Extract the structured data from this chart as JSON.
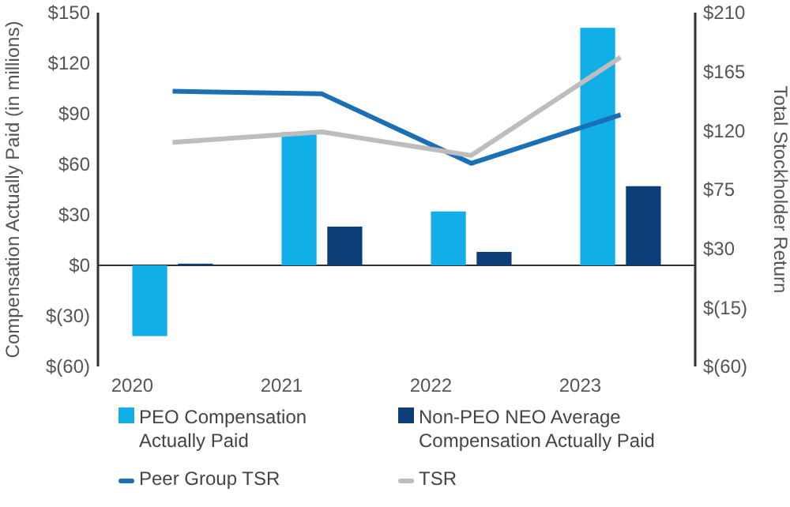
{
  "chart_data": {
    "type": "bar",
    "categories": [
      "2020",
      "2021",
      "2022",
      "2023"
    ],
    "ylabel": "Compensation Actually Paid (in millions)",
    "y2label": "Total Stockholder Return",
    "series": [
      {
        "name": "PEO Compensation Actually Paid",
        "color": "#12aee8",
        "values": [
          -42,
          79,
          32,
          141
        ]
      },
      {
        "name": "Non-PEO NEO Average Compensation Actually Paid",
        "color": "#0c3f78",
        "values": [
          1,
          23,
          8,
          47
        ]
      },
      {
        "name": "Peer Group TSR",
        "type": "line",
        "axis": "y2",
        "color": "#1a6fb5",
        "values": [
          150,
          148,
          95,
          132
        ]
      },
      {
        "name": "TSR",
        "type": "line",
        "axis": "y2",
        "color": "#bdbdbd",
        "values": [
          111,
          119,
          101,
          176
        ]
      }
    ],
    "ylim": [
      -60,
      150
    ],
    "yticks": [
      {
        "value": -60,
        "label": "$(60)"
      },
      {
        "value": -30,
        "label": "$(30)"
      },
      {
        "value": 0,
        "label": "$0"
      },
      {
        "value": 30,
        "label": "$30"
      },
      {
        "value": 60,
        "label": "$60"
      },
      {
        "value": 90,
        "label": "$90"
      },
      {
        "value": 120,
        "label": "$120"
      },
      {
        "value": 150,
        "label": "$150"
      }
    ],
    "y2lim": [
      -60,
      210
    ],
    "y2ticks": [
      {
        "value": -60,
        "label": "$(60)"
      },
      {
        "value": -15,
        "label": "$(15)"
      },
      {
        "value": 30,
        "label": "$30"
      },
      {
        "value": 75,
        "label": "$75"
      },
      {
        "value": 120,
        "label": "$120"
      },
      {
        "value": 165,
        "label": "$165"
      },
      {
        "value": 210,
        "label": "$210"
      }
    ],
    "legend": "bottom"
  }
}
